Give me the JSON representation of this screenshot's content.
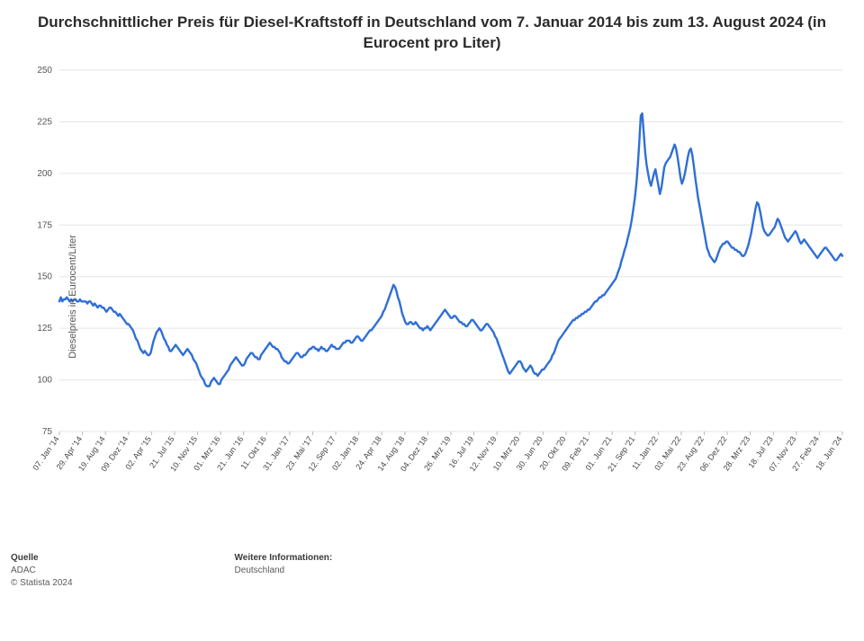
{
  "title": "Durchschnittlicher Preis für Diesel-Kraftstoff in Deutschland vom 7. Januar 2014 bis zum 13. August 2024 (in Eurocent pro Liter)",
  "title_fontsize": 17,
  "chart": {
    "type": "line",
    "background_color": "#ffffff",
    "grid_color": "#e6e6e6",
    "series_color": "#2f6fd6",
    "line_width": 2.4,
    "ylabel": "Dieselpreis in Eurocent/Liter",
    "ylabel_fontsize": 11,
    "ylim": [
      75,
      250
    ],
    "ytick_step": 25,
    "yticks": [
      75,
      100,
      125,
      150,
      175,
      200,
      225,
      250
    ],
    "xticks": [
      "07. Jan '14",
      "29. Apr '14",
      "19. Aug '14",
      "09. Dez '14",
      "02. Apr '15",
      "21. Jul '15",
      "10. Nov '15",
      "01. Mrz '16",
      "21. Jun '16",
      "11. Okt '16",
      "31. Jan '17",
      "23. Mai '17",
      "12. Sep '17",
      "02. Jan '18",
      "24. Apr '18",
      "14. Aug '18",
      "04. Dez '18",
      "26. Mrz '19",
      "16. Jul '19",
      "12. Nov '19",
      "10. Mrz '20",
      "30. Jun '20",
      "20. Okt '20",
      "09. Feb '21",
      "01. Jun '21",
      "21. Sep '21",
      "11. Jan '22",
      "03. Mai '22",
      "23. Aug '22",
      "06. Dez '22",
      "28. Mrz '23",
      "18. Jul '23",
      "07. Nov '23",
      "27. Feb '24",
      "18. Jun '24"
    ],
    "xtick_fontsize": 9,
    "ytick_fontsize": 10,
    "values": [
      138,
      140,
      138,
      139,
      139,
      140,
      139,
      138,
      139,
      138,
      139,
      139,
      138,
      138,
      139,
      138,
      138,
      138,
      138,
      137,
      138,
      138,
      137,
      136,
      137,
      136,
      135,
      136,
      136,
      135,
      135,
      134,
      133,
      134,
      135,
      135,
      134,
      133,
      133,
      132,
      131,
      132,
      131,
      130,
      129,
      128,
      127,
      127,
      126,
      125,
      124,
      122,
      120,
      119,
      117,
      115,
      114,
      113,
      114,
      113,
      112,
      112,
      113,
      116,
      119,
      121,
      123,
      124,
      125,
      124,
      122,
      120,
      119,
      117,
      116,
      114,
      114,
      115,
      116,
      117,
      116,
      115,
      114,
      113,
      112,
      113,
      114,
      115,
      114,
      113,
      112,
      110,
      109,
      108,
      106,
      104,
      102,
      101,
      100,
      98,
      97,
      97,
      97,
      99,
      100,
      101,
      100,
      99,
      98,
      98,
      100,
      101,
      102,
      103,
      104,
      105,
      107,
      108,
      109,
      110,
      111,
      110,
      109,
      108,
      107,
      107,
      108,
      110,
      111,
      112,
      113,
      113,
      112,
      111,
      111,
      110,
      110,
      112,
      113,
      114,
      115,
      116,
      117,
      118,
      117,
      116,
      116,
      115,
      115,
      114,
      113,
      111,
      110,
      109,
      109,
      108,
      108,
      109,
      110,
      111,
      112,
      113,
      113,
      112,
      111,
      111,
      112,
      112,
      113,
      114,
      115,
      115,
      116,
      116,
      115,
      115,
      114,
      115,
      116,
      115,
      115,
      114,
      114,
      115,
      116,
      117,
      116,
      116,
      115,
      115,
      115,
      116,
      117,
      118,
      118,
      119,
      119,
      119,
      118,
      118,
      119,
      120,
      121,
      121,
      120,
      119,
      119,
      120,
      121,
      122,
      123,
      124,
      124,
      125,
      126,
      127,
      128,
      129,
      130,
      131,
      133,
      134,
      136,
      138,
      140,
      142,
      144,
      146,
      145,
      143,
      140,
      138,
      135,
      132,
      130,
      128,
      127,
      127,
      128,
      128,
      127,
      127,
      128,
      127,
      126,
      125,
      125,
      124,
      125,
      125,
      126,
      125,
      124,
      125,
      126,
      127,
      128,
      129,
      130,
      131,
      132,
      133,
      134,
      133,
      132,
      131,
      130,
      130,
      131,
      131,
      130,
      129,
      128,
      128,
      127,
      127,
      126,
      126,
      127,
      128,
      129,
      129,
      128,
      127,
      126,
      125,
      124,
      124,
      125,
      126,
      127,
      127,
      126,
      125,
      124,
      123,
      121,
      120,
      118,
      116,
      114,
      112,
      110,
      108,
      106,
      104,
      103,
      104,
      105,
      106,
      107,
      108,
      109,
      109,
      108,
      106,
      105,
      104,
      105,
      106,
      107,
      106,
      104,
      103,
      103,
      102,
      103,
      104,
      105,
      105,
      106,
      107,
      108,
      109,
      110,
      112,
      113,
      115,
      117,
      119,
      120,
      121,
      122,
      123,
      124,
      125,
      126,
      127,
      128,
      129,
      129,
      130,
      130,
      131,
      131,
      132,
      132,
      133,
      133,
      134,
      134,
      135,
      136,
      137,
      138,
      138,
      139,
      140,
      140,
      141,
      141,
      142,
      143,
      144,
      145,
      146,
      147,
      148,
      149,
      151,
      153,
      155,
      158,
      160,
      163,
      165,
      168,
      171,
      174,
      178,
      183,
      188,
      195,
      204,
      215,
      228,
      229,
      220,
      210,
      204,
      200,
      196,
      194,
      197,
      200,
      202,
      198,
      194,
      190,
      193,
      198,
      203,
      205,
      206,
      207,
      208,
      210,
      212,
      214,
      212,
      208,
      203,
      198,
      195,
      197,
      200,
      204,
      208,
      211,
      212,
      209,
      204,
      198,
      193,
      188,
      184,
      180,
      176,
      172,
      168,
      164,
      162,
      160,
      159,
      158,
      157,
      158,
      160,
      162,
      164,
      165,
      166,
      166,
      167,
      167,
      166,
      165,
      164,
      164,
      163,
      163,
      162,
      162,
      161,
      160,
      160,
      161,
      163,
      165,
      168,
      171,
      175,
      179,
      183,
      186,
      185,
      182,
      178,
      174,
      172,
      171,
      170,
      170,
      171,
      172,
      173,
      174,
      176,
      178,
      177,
      175,
      173,
      171,
      169,
      168,
      167,
      168,
      169,
      170,
      171,
      172,
      171,
      169,
      167,
      166,
      167,
      168,
      167,
      166,
      165,
      164,
      163,
      162,
      161,
      160,
      159,
      160,
      161,
      162,
      163,
      164,
      164,
      163,
      162,
      161,
      160,
      159,
      158,
      158,
      159,
      160,
      161,
      160
    ]
  },
  "footer": {
    "source_label": "Quelle",
    "source_value": "ADAC",
    "copyright": "© Statista 2024",
    "info_label": "Weitere Informationen:",
    "info_value": "Deutschland"
  }
}
